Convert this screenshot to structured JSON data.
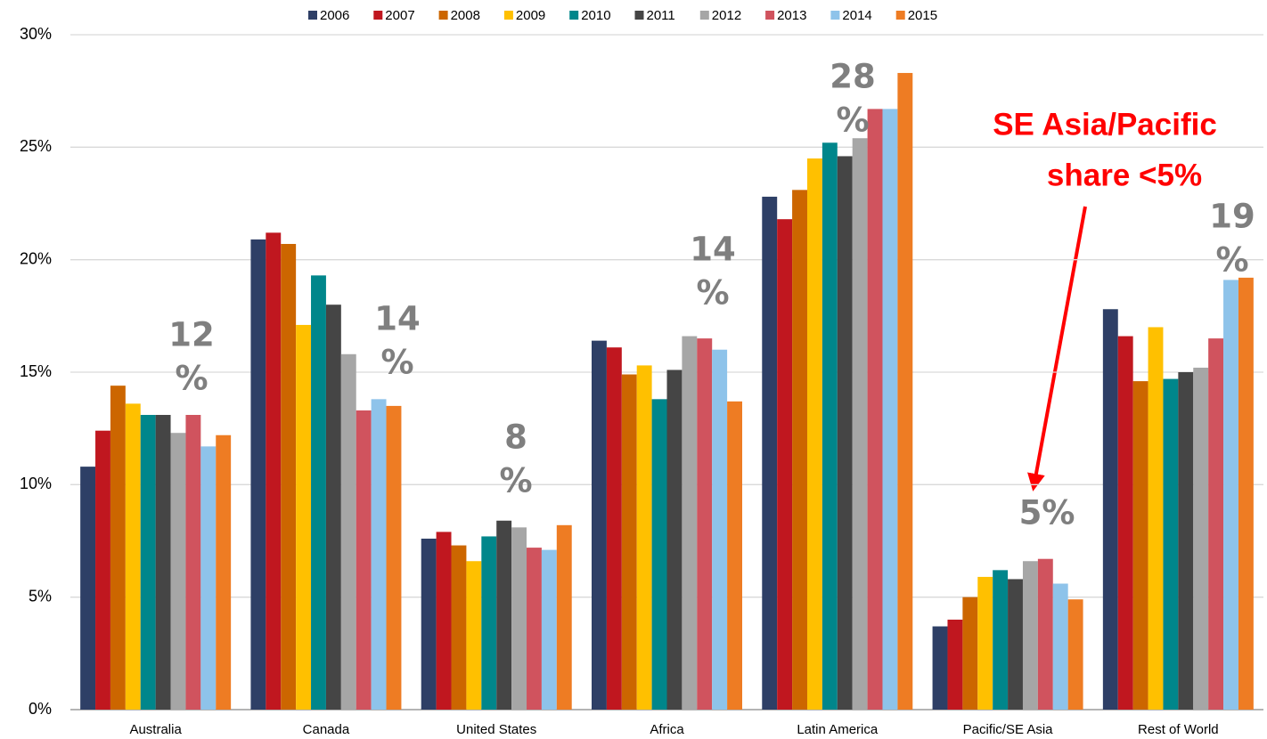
{
  "chart_data": {
    "type": "bar",
    "categories": [
      "Australia",
      "Canada",
      "United States",
      "Africa",
      "Latin America",
      "Pacific/SE Asia",
      "Rest of World"
    ],
    "series": [
      {
        "name": "2006",
        "color": "#2e3f66",
        "values": [
          10.8,
          20.9,
          7.6,
          16.4,
          22.8,
          3.7,
          17.8
        ]
      },
      {
        "name": "2007",
        "color": "#c0171f",
        "values": [
          12.4,
          21.2,
          7.9,
          16.1,
          21.8,
          4.0,
          16.6
        ]
      },
      {
        "name": "2008",
        "color": "#cc6600",
        "values": [
          14.4,
          20.7,
          7.3,
          14.9,
          23.1,
          5.0,
          14.6
        ]
      },
      {
        "name": "2009",
        "color": "#ffc000",
        "values": [
          13.6,
          17.1,
          6.6,
          15.3,
          24.5,
          5.9,
          17.0
        ]
      },
      {
        "name": "2010",
        "color": "#00868b",
        "values": [
          13.1,
          19.3,
          7.7,
          13.8,
          25.2,
          6.2,
          14.7
        ]
      },
      {
        "name": "2011",
        "color": "#454545",
        "values": [
          13.1,
          18.0,
          8.4,
          15.1,
          24.6,
          5.8,
          15.0
        ]
      },
      {
        "name": "2012",
        "color": "#a6a6a6",
        "values": [
          12.3,
          15.8,
          8.1,
          16.6,
          25.4,
          6.6,
          15.2
        ]
      },
      {
        "name": "2013",
        "color": "#d0535e",
        "values": [
          13.1,
          13.3,
          7.2,
          16.5,
          26.7,
          6.7,
          16.5
        ]
      },
      {
        "name": "2014",
        "color": "#8ec3ea",
        "values": [
          11.7,
          13.8,
          7.1,
          16.0,
          26.7,
          5.6,
          19.1
        ]
      },
      {
        "name": "2015",
        "color": "#ee7c23",
        "values": [
          12.2,
          13.5,
          8.2,
          13.7,
          28.3,
          4.9,
          19.2
        ]
      }
    ],
    "ylim": [
      0,
      30
    ],
    "yticks": [
      {
        "value": 0,
        "label": "0%"
      },
      {
        "value": 5,
        "label": "5%"
      },
      {
        "value": 10,
        "label": "10%"
      },
      {
        "value": 15,
        "label": "15%"
      },
      {
        "value": 20,
        "label": "20%"
      },
      {
        "value": 25,
        "label": "25%"
      },
      {
        "value": 30,
        "label": "30%"
      }
    ],
    "grid": true,
    "legend": "top",
    "annotations": [
      {
        "lines": [
          "12",
          "%"
        ]
      },
      {
        "lines": [
          "14",
          "%"
        ]
      },
      {
        "lines": [
          "8",
          "%"
        ]
      },
      {
        "lines": [
          "14",
          "%"
        ]
      },
      {
        "lines": [
          "28",
          "%"
        ]
      },
      {
        "lines": [
          "5%"
        ]
      },
      {
        "lines": [
          "19",
          "%"
        ]
      }
    ],
    "annotation_color": "#7f7f7f",
    "callout": {
      "lines": [
        "SE Asia/Pacific",
        "share <5%"
      ],
      "color": "#ff0000"
    }
  }
}
